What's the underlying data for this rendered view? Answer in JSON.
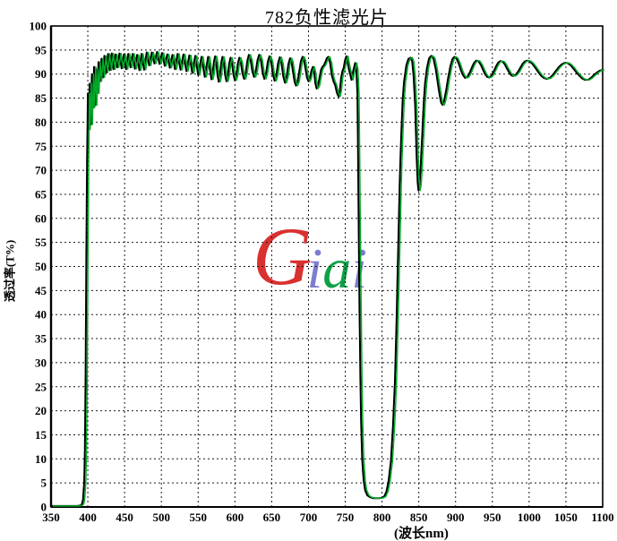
{
  "window": {
    "title": "782负性滤光片"
  },
  "watermark": {
    "text": "Giai",
    "letters": [
      {
        "ch": "G",
        "color": "#d93030"
      },
      {
        "ch": "i",
        "color": "#7d7dd0"
      },
      {
        "ch": "a",
        "color": "#0fa047"
      },
      {
        "ch": "i",
        "color": "#7d7dd0"
      }
    ]
  },
  "chart_data": {
    "type": "line",
    "title": "782负性滤光片",
    "xlabel": "(波长nm)",
    "ylabel": "透过率(T%)",
    "xlim": [
      350,
      1100
    ],
    "ylim": [
      0,
      100
    ],
    "x_ticks": [
      350,
      400,
      450,
      500,
      550,
      600,
      650,
      700,
      750,
      800,
      850,
      900,
      950,
      1000,
      1050,
      1100
    ],
    "y_ticks": [
      0,
      5,
      10,
      15,
      20,
      25,
      30,
      35,
      40,
      45,
      50,
      55,
      60,
      65,
      70,
      75,
      80,
      85,
      90,
      95,
      100
    ],
    "grid": "dashed-both-axes",
    "legend": "none",
    "grid_color": "#1a1a1a",
    "series": [
      {
        "name": "transmission-curve-black",
        "color": "#000000",
        "width": 2,
        "points": [
          [
            350,
            0.2
          ],
          [
            370,
            0.2
          ],
          [
            385,
            0.2
          ],
          [
            390,
            0.3
          ],
          [
            392,
            0.6
          ],
          [
            393.5,
            1.5
          ],
          [
            395,
            5
          ],
          [
            396,
            12
          ],
          [
            397,
            28
          ],
          [
            398,
            52
          ],
          [
            399,
            72
          ],
          [
            400,
            86
          ],
          [
            401,
            78.5
          ],
          [
            402.5,
            88
          ],
          [
            404,
            79.5
          ],
          [
            405.5,
            90
          ],
          [
            407,
            83
          ],
          [
            408.5,
            91.5
          ],
          [
            410,
            83.5
          ],
          [
            411.5,
            91
          ],
          [
            413,
            86
          ],
          [
            414.5,
            92.5
          ],
          [
            416.5,
            88.5
          ],
          [
            418.5,
            93.2
          ],
          [
            420.5,
            89.3
          ],
          [
            422.5,
            93.8
          ],
          [
            425,
            90.3
          ],
          [
            427.5,
            94.2
          ],
          [
            430,
            90.8
          ],
          [
            432.5,
            94.3
          ],
          [
            435,
            91
          ],
          [
            437.5,
            94.1
          ],
          [
            440,
            91.4
          ],
          [
            443,
            94.3
          ],
          [
            446,
            91.2
          ],
          [
            449,
            94.1
          ],
          [
            452,
            91
          ],
          [
            455,
            94.2
          ],
          [
            458,
            91.4
          ],
          [
            461,
            94.2
          ],
          [
            464,
            91.1
          ],
          [
            467,
            94
          ],
          [
            470,
            90.8
          ],
          [
            473,
            94.2
          ],
          [
            476.5,
            90.9
          ],
          [
            480,
            94.5
          ],
          [
            483.5,
            91.8
          ],
          [
            487,
            94.5
          ],
          [
            490.5,
            92.2
          ],
          [
            494,
            94.6
          ],
          [
            497.5,
            92.1
          ],
          [
            501,
            94.4
          ],
          [
            504.5,
            91.7
          ],
          [
            508,
            94.1
          ],
          [
            511.5,
            91.3
          ],
          [
            515,
            94
          ],
          [
            518.5,
            91
          ],
          [
            522,
            94.2
          ],
          [
            526,
            90.9
          ],
          [
            530,
            94.1
          ],
          [
            534,
            90.6
          ],
          [
            538,
            93.9
          ],
          [
            542,
            90.2
          ],
          [
            546,
            93.8
          ],
          [
            550,
            89.8
          ],
          [
            554.5,
            93.6
          ],
          [
            559,
            89.4
          ],
          [
            563.5,
            93.6
          ],
          [
            568,
            88.9
          ],
          [
            573,
            93.7
          ],
          [
            578,
            88.4
          ],
          [
            583,
            93.6
          ],
          [
            588.5,
            88.5
          ],
          [
            594,
            93.4
          ],
          [
            600,
            88.7
          ],
          [
            606,
            93.4
          ],
          [
            612.5,
            89
          ],
          [
            619,
            94
          ],
          [
            626,
            89.4
          ],
          [
            633,
            94
          ],
          [
            640,
            89
          ],
          [
            647,
            93.7
          ],
          [
            654,
            88.6
          ],
          [
            661,
            93.5
          ],
          [
            668,
            88.2
          ],
          [
            675,
            93.3
          ],
          [
            683,
            87.6
          ],
          [
            692,
            93.6
          ],
          [
            700,
            88.5
          ],
          [
            706,
            91.5
          ],
          [
            711,
            87
          ],
          [
            719,
            91.5
          ],
          [
            727,
            93.6
          ],
          [
            734,
            88.5
          ],
          [
            741,
            85.3
          ],
          [
            746,
            90.5
          ],
          [
            751.5,
            93.7
          ],
          [
            755,
            91
          ],
          [
            758.5,
            88.8
          ],
          [
            761,
            90.8
          ],
          [
            763.5,
            92.3
          ],
          [
            765,
            91
          ],
          [
            766.5,
            86
          ],
          [
            767.5,
            72
          ],
          [
            768.5,
            55
          ],
          [
            769.5,
            40
          ],
          [
            770.5,
            27
          ],
          [
            771.5,
            18
          ],
          [
            773,
            10
          ],
          [
            775,
            5.5
          ],
          [
            777,
            3.5
          ],
          [
            780,
            2.4
          ],
          [
            784,
            2
          ],
          [
            789,
            1.8
          ],
          [
            795,
            1.8
          ],
          [
            800,
            1.9
          ],
          [
            803,
            2.2
          ],
          [
            806,
            3.2
          ],
          [
            809,
            5.5
          ],
          [
            812,
            9.5
          ],
          [
            815,
            17
          ],
          [
            817.5,
            26
          ],
          [
            820,
            40
          ],
          [
            822,
            54
          ],
          [
            824,
            67
          ],
          [
            826,
            77
          ],
          [
            828,
            84.5
          ],
          [
            830,
            88.5
          ],
          [
            833,
            91.8
          ],
          [
            836,
            93.2
          ],
          [
            839,
            93.4
          ],
          [
            841,
            92.6
          ],
          [
            843,
            89.5
          ],
          [
            845,
            83.5
          ],
          [
            847,
            73
          ],
          [
            848.5,
            67.5
          ],
          [
            849.5,
            65.8
          ],
          [
            851,
            67
          ],
          [
            852.5,
            70.5
          ],
          [
            854.5,
            77
          ],
          [
            856.5,
            83.5
          ],
          [
            858.5,
            88
          ],
          [
            861,
            91.2
          ],
          [
            864,
            93.3
          ],
          [
            867,
            93.8
          ],
          [
            870,
            93.2
          ],
          [
            873,
            91
          ],
          [
            876,
            88
          ],
          [
            878.5,
            85.5
          ],
          [
            880.5,
            84
          ],
          [
            882.5,
            83.6
          ],
          [
            884.5,
            84.5
          ],
          [
            887,
            86.5
          ],
          [
            890,
            89.3
          ],
          [
            893,
            91.7
          ],
          [
            896,
            93.2
          ],
          [
            898.5,
            93.6
          ],
          [
            901,
            93.3
          ],
          [
            904,
            92.3
          ],
          [
            907,
            90.9
          ],
          [
            910,
            89.8
          ],
          [
            913,
            89.2
          ],
          [
            916,
            89.4
          ],
          [
            919,
            90.2
          ],
          [
            922,
            91.3
          ],
          [
            925,
            92.3
          ],
          [
            928,
            92.8
          ],
          [
            931,
            92.7
          ],
          [
            934,
            92
          ],
          [
            937,
            91
          ],
          [
            940,
            90
          ],
          [
            943,
            89.4
          ],
          [
            946,
            89.3
          ],
          [
            949,
            89.7
          ],
          [
            952,
            90.6
          ],
          [
            955,
            91.6
          ],
          [
            958,
            92.4
          ],
          [
            961,
            92.7
          ],
          [
            964,
            92.6
          ],
          [
            967,
            92
          ],
          [
            970,
            91.1
          ],
          [
            973,
            90.3
          ],
          [
            976,
            89.7
          ],
          [
            979,
            89.6
          ],
          [
            982,
            89.9
          ],
          [
            985,
            90.5
          ],
          [
            988,
            91.3
          ],
          [
            991,
            92.1
          ],
          [
            994,
            92.6
          ],
          [
            997,
            92.8
          ],
          [
            1000,
            92.7
          ],
          [
            1004,
            92.2
          ],
          [
            1008,
            91.4
          ],
          [
            1012,
            90.5
          ],
          [
            1016,
            89.7
          ],
          [
            1020,
            89.2
          ],
          [
            1024,
            89
          ],
          [
            1028,
            89.2
          ],
          [
            1032,
            89.8
          ],
          [
            1036,
            90.6
          ],
          [
            1040,
            91.4
          ],
          [
            1044,
            92
          ],
          [
            1048,
            92.3
          ],
          [
            1052,
            92.3
          ],
          [
            1056,
            91.9
          ],
          [
            1060,
            91.2
          ],
          [
            1064,
            90.4
          ],
          [
            1068,
            89.7
          ],
          [
            1072,
            89.1
          ],
          [
            1076,
            88.8
          ],
          [
            1080,
            88.8
          ],
          [
            1084,
            89.2
          ],
          [
            1088,
            89.8
          ],
          [
            1092,
            90.3
          ],
          [
            1096,
            90.7
          ],
          [
            1100,
            90.9
          ]
        ]
      },
      {
        "name": "transmission-curve-green",
        "color": "#00aa28",
        "width": 1.5,
        "dx_nm": 2.2,
        "points_ref": 0
      }
    ]
  }
}
